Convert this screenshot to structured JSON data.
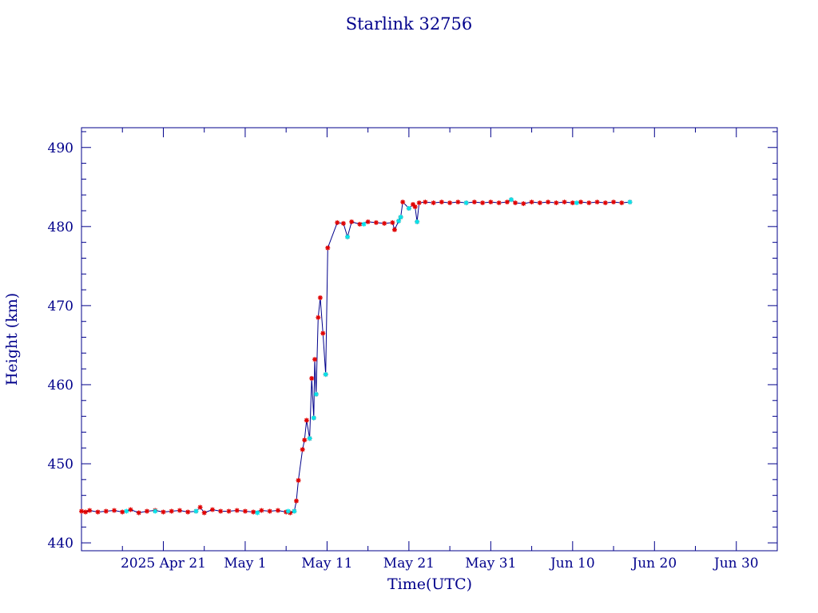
{
  "chart_data": {
    "type": "line",
    "title": "Starlink 32756",
    "xlabel": "Time(UTC)",
    "ylabel": "Height (km)",
    "xlim": [
      "2025-04-11",
      "2025-07-05"
    ],
    "ylim": [
      439,
      492.5
    ],
    "x_ticks": [
      {
        "date": "2025-04-21",
        "label": "2025 Apr 21"
      },
      {
        "date": "2025-05-01",
        "label": "May  1"
      },
      {
        "date": "2025-05-11",
        "label": "May 11"
      },
      {
        "date": "2025-05-21",
        "label": "May 21"
      },
      {
        "date": "2025-05-31",
        "label": "May 31"
      },
      {
        "date": "2025-06-10",
        "label": "Jun 10"
      },
      {
        "date": "2025-06-20",
        "label": "Jun 20"
      },
      {
        "date": "2025-06-30",
        "label": "Jun 30"
      }
    ],
    "y_ticks": [
      440,
      450,
      460,
      470,
      480,
      490
    ],
    "grid": false,
    "colors": {
      "axes": "#00008b",
      "line": "#00008b",
      "marker_primary": "#e00000",
      "marker_secondary": "#00e5ee"
    },
    "series": [
      {
        "points": [
          [
            "2025-04-11T00:00",
            444.0
          ],
          [
            "2025-04-11T12:00",
            443.9
          ],
          [
            "2025-04-12T00:00",
            444.1
          ],
          [
            "2025-04-13T00:00",
            443.9
          ],
          [
            "2025-04-14T00:00",
            444.0
          ],
          [
            "2025-04-15T00:00",
            444.1
          ],
          [
            "2025-04-16T00:00",
            443.9
          ],
          [
            "2025-04-17T00:00",
            444.2
          ],
          [
            "2025-04-18T00:00",
            443.8
          ],
          [
            "2025-04-19T00:00",
            444.0
          ],
          [
            "2025-04-20T00:00",
            444.1
          ],
          [
            "2025-04-21T00:00",
            443.9
          ],
          [
            "2025-04-22T00:00",
            444.0
          ],
          [
            "2025-04-23T00:00",
            444.1
          ],
          [
            "2025-04-24T00:00",
            443.9
          ],
          [
            "2025-04-25T00:00",
            444.0
          ],
          [
            "2025-04-25T12:00",
            444.5
          ],
          [
            "2025-04-26T00:00",
            443.8
          ],
          [
            "2025-04-27T00:00",
            444.2
          ],
          [
            "2025-04-28T00:00",
            444.0
          ],
          [
            "2025-04-29T00:00",
            444.0
          ],
          [
            "2025-04-30T00:00",
            444.1
          ],
          [
            "2025-05-01T00:00",
            444.0
          ],
          [
            "2025-05-02T00:00",
            443.9
          ],
          [
            "2025-05-03T00:00",
            444.1
          ],
          [
            "2025-05-04T00:00",
            444.0
          ],
          [
            "2025-05-05T00:00",
            444.1
          ],
          [
            "2025-05-06T00:00",
            443.9
          ],
          [
            "2025-05-06T12:00",
            443.8
          ],
          [
            "2025-05-07T00:00",
            444.0
          ],
          [
            "2025-05-07T06:00",
            445.3
          ],
          [
            "2025-05-07T12:00",
            447.9
          ],
          [
            "2025-05-08T00:00",
            451.8
          ],
          [
            "2025-05-08T06:00",
            453.0
          ],
          [
            "2025-05-08T12:00",
            455.5
          ],
          [
            "2025-05-08T21:00",
            453.2
          ],
          [
            "2025-05-09T03:00",
            460.8
          ],
          [
            "2025-05-09T09:00",
            455.8
          ],
          [
            "2025-05-09T12:00",
            463.2
          ],
          [
            "2025-05-09T16:00",
            458.8
          ],
          [
            "2025-05-09T22:00",
            468.5
          ],
          [
            "2025-05-10T04:00",
            471.0
          ],
          [
            "2025-05-10T12:00",
            466.5
          ],
          [
            "2025-05-10T20:00",
            461.3
          ],
          [
            "2025-05-11T02:00",
            477.3
          ],
          [
            "2025-05-12T06:00",
            480.5
          ],
          [
            "2025-05-13T00:00",
            480.4
          ],
          [
            "2025-05-13T12:00",
            478.7
          ],
          [
            "2025-05-14T00:00",
            480.6
          ],
          [
            "2025-05-15T00:00",
            480.3
          ],
          [
            "2025-05-16T00:00",
            480.6
          ],
          [
            "2025-05-17T00:00",
            480.5
          ],
          [
            "2025-05-18T00:00",
            480.4
          ],
          [
            "2025-05-19T00:00",
            480.5
          ],
          [
            "2025-05-19T06:00",
            479.6
          ],
          [
            "2025-05-19T18:00",
            480.7
          ],
          [
            "2025-05-20T00:00",
            481.2
          ],
          [
            "2025-05-20T06:00",
            483.1
          ],
          [
            "2025-05-21T00:00",
            482.3
          ],
          [
            "2025-05-21T12:00",
            482.8
          ],
          [
            "2025-05-21T18:00",
            482.5
          ],
          [
            "2025-05-22T00:00",
            480.6
          ],
          [
            "2025-05-22T06:00",
            483.0
          ],
          [
            "2025-05-23T00:00",
            483.1
          ],
          [
            "2025-05-24T00:00",
            483.0
          ],
          [
            "2025-05-25T00:00",
            483.1
          ],
          [
            "2025-05-26T00:00",
            483.0
          ],
          [
            "2025-05-27T00:00",
            483.1
          ],
          [
            "2025-05-28T00:00",
            483.0
          ],
          [
            "2025-05-29T00:00",
            483.1
          ],
          [
            "2025-05-30T00:00",
            483.0
          ],
          [
            "2025-05-31T00:00",
            483.1
          ],
          [
            "2025-06-01T00:00",
            483.0
          ],
          [
            "2025-06-02T00:00",
            483.1
          ],
          [
            "2025-06-02T12:00",
            483.4
          ],
          [
            "2025-06-03T00:00",
            483.0
          ],
          [
            "2025-06-04T00:00",
            482.9
          ],
          [
            "2025-06-05T00:00",
            483.1
          ],
          [
            "2025-06-06T00:00",
            483.0
          ],
          [
            "2025-06-07T00:00",
            483.1
          ],
          [
            "2025-06-08T00:00",
            483.0
          ],
          [
            "2025-06-09T00:00",
            483.1
          ],
          [
            "2025-06-10T00:00",
            483.0
          ],
          [
            "2025-06-11T00:00",
            483.1
          ],
          [
            "2025-06-12T00:00",
            483.0
          ],
          [
            "2025-06-13T00:00",
            483.1
          ],
          [
            "2025-06-14T00:00",
            483.0
          ],
          [
            "2025-06-15T00:00",
            483.1
          ],
          [
            "2025-06-16T00:00",
            483.0
          ],
          [
            "2025-06-17T00:00",
            483.1
          ]
        ],
        "secondary_points": [
          [
            "2025-04-16T12:00",
            444.0
          ],
          [
            "2025-04-20T00:00",
            444.0
          ],
          [
            "2025-04-25T00:00",
            444.0
          ],
          [
            "2025-05-02T12:00",
            443.8
          ],
          [
            "2025-05-06T06:00",
            444.0
          ],
          [
            "2025-05-07T00:00",
            444.0
          ],
          [
            "2025-05-08T21:00",
            453.2
          ],
          [
            "2025-05-09T09:00",
            455.8
          ],
          [
            "2025-05-09T16:00",
            458.8
          ],
          [
            "2025-05-10T20:00",
            461.3
          ],
          [
            "2025-05-13T12:00",
            478.7
          ],
          [
            "2025-05-15T12:00",
            480.3
          ],
          [
            "2025-05-19T18:00",
            480.7
          ],
          [
            "2025-05-20T00:00",
            481.2
          ],
          [
            "2025-05-21T00:00",
            482.3
          ],
          [
            "2025-05-22T00:00",
            480.6
          ],
          [
            "2025-05-28T00:00",
            483.0
          ],
          [
            "2025-06-02T12:00",
            483.4
          ],
          [
            "2025-06-10T12:00",
            483.0
          ],
          [
            "2025-06-17T00:00",
            483.1
          ]
        ]
      }
    ]
  }
}
